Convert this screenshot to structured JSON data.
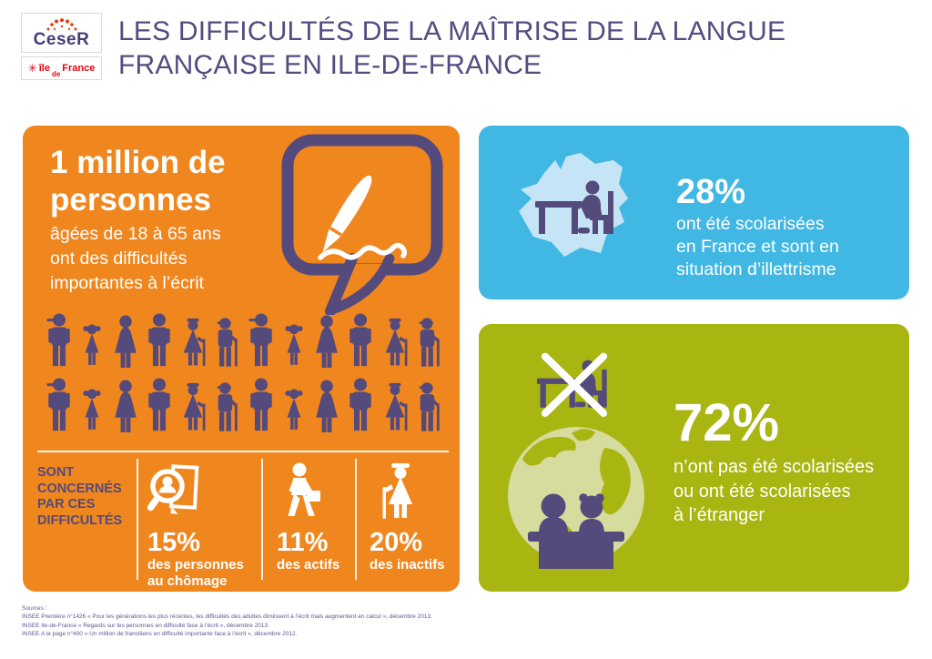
{
  "header": {
    "ceser_label": "CeseR",
    "idf": {
      "ile": "île",
      "de": "de",
      "france": "France"
    },
    "title_line1": "LES DIFFICULTÉS DE LA MAÎTRISE DE LA LANGUE",
    "title_line2": "FRANÇAISE EN ILE-DE-FRANCE"
  },
  "orange_panel": {
    "headline_line1": "1 million de",
    "headline_line2": "personnes",
    "sub_lines": [
      "âgées de 18 à 65 ans",
      "ont des difficultés",
      "importantes à l’écrit"
    ],
    "bubble_icon": "speech-bubble-pen-icon",
    "people_rows": [
      [
        "man-cap",
        "girl",
        "woman",
        "man",
        "elder-woman",
        "elder-man",
        "man-cap",
        "girl",
        "woman",
        "man",
        "elder-woman",
        "elder-man"
      ],
      [
        "man-cap",
        "girl",
        "woman",
        "man",
        "elder-woman",
        "elder-man",
        "man",
        "girl",
        "woman",
        "man",
        "elder-woman",
        "elder-man"
      ]
    ],
    "concern_lines": [
      "SONT",
      "CONCERNÉS",
      "PAR CES",
      "DIFFICULTÉS"
    ],
    "stats": [
      {
        "icon": "job-search-icon",
        "value": "15%",
        "label_line1": "des personnes",
        "label_line2": "au chômage"
      },
      {
        "icon": "walking-worker-icon",
        "value": "11%",
        "label_line1": "des actifs",
        "label_line2": ""
      },
      {
        "icon": "elderly-woman-icon",
        "value": "20%",
        "label_line1": "des inactifs",
        "label_line2": ""
      }
    ]
  },
  "blue_panel": {
    "icon": "france-map-school-desk-icon",
    "value": "28%",
    "lines": [
      "ont été scolarisées",
      "en France et sont en",
      "situation d’illettrisme"
    ]
  },
  "green_panel": {
    "icon_crossed": "no-school-desk-icon",
    "icon_globe": "globe-pupils-desk-icon",
    "value": "72%",
    "lines": [
      "n’ont pas été scolarisées",
      "ou ont été scolarisées",
      "à l’étranger"
    ]
  },
  "sources": {
    "heading": "Sources :",
    "lines": [
      "INSEE Première n°1426 « Pour les générations les plus récentes, les difficultés des adultes diminuent à l’écrit mais augmentent en calcul », décembre 2013.",
      "INSEE Ile-de-France « Regards sur les personnes en difficulté face à l’écrit », décembre 2013.",
      "INSEE A la page n°400 « Un million de franciliens en difficulté importante face à l’écrit », décembre 2012."
    ]
  },
  "colors": {
    "orange": "#F0871E",
    "blue": "#41B8E4",
    "green": "#A9B511",
    "purple": "#544A7B",
    "light_blue": "#C5E5F7",
    "light_green": "#D6DB9E",
    "red": "#E30613",
    "title_purple": "#564B80"
  }
}
